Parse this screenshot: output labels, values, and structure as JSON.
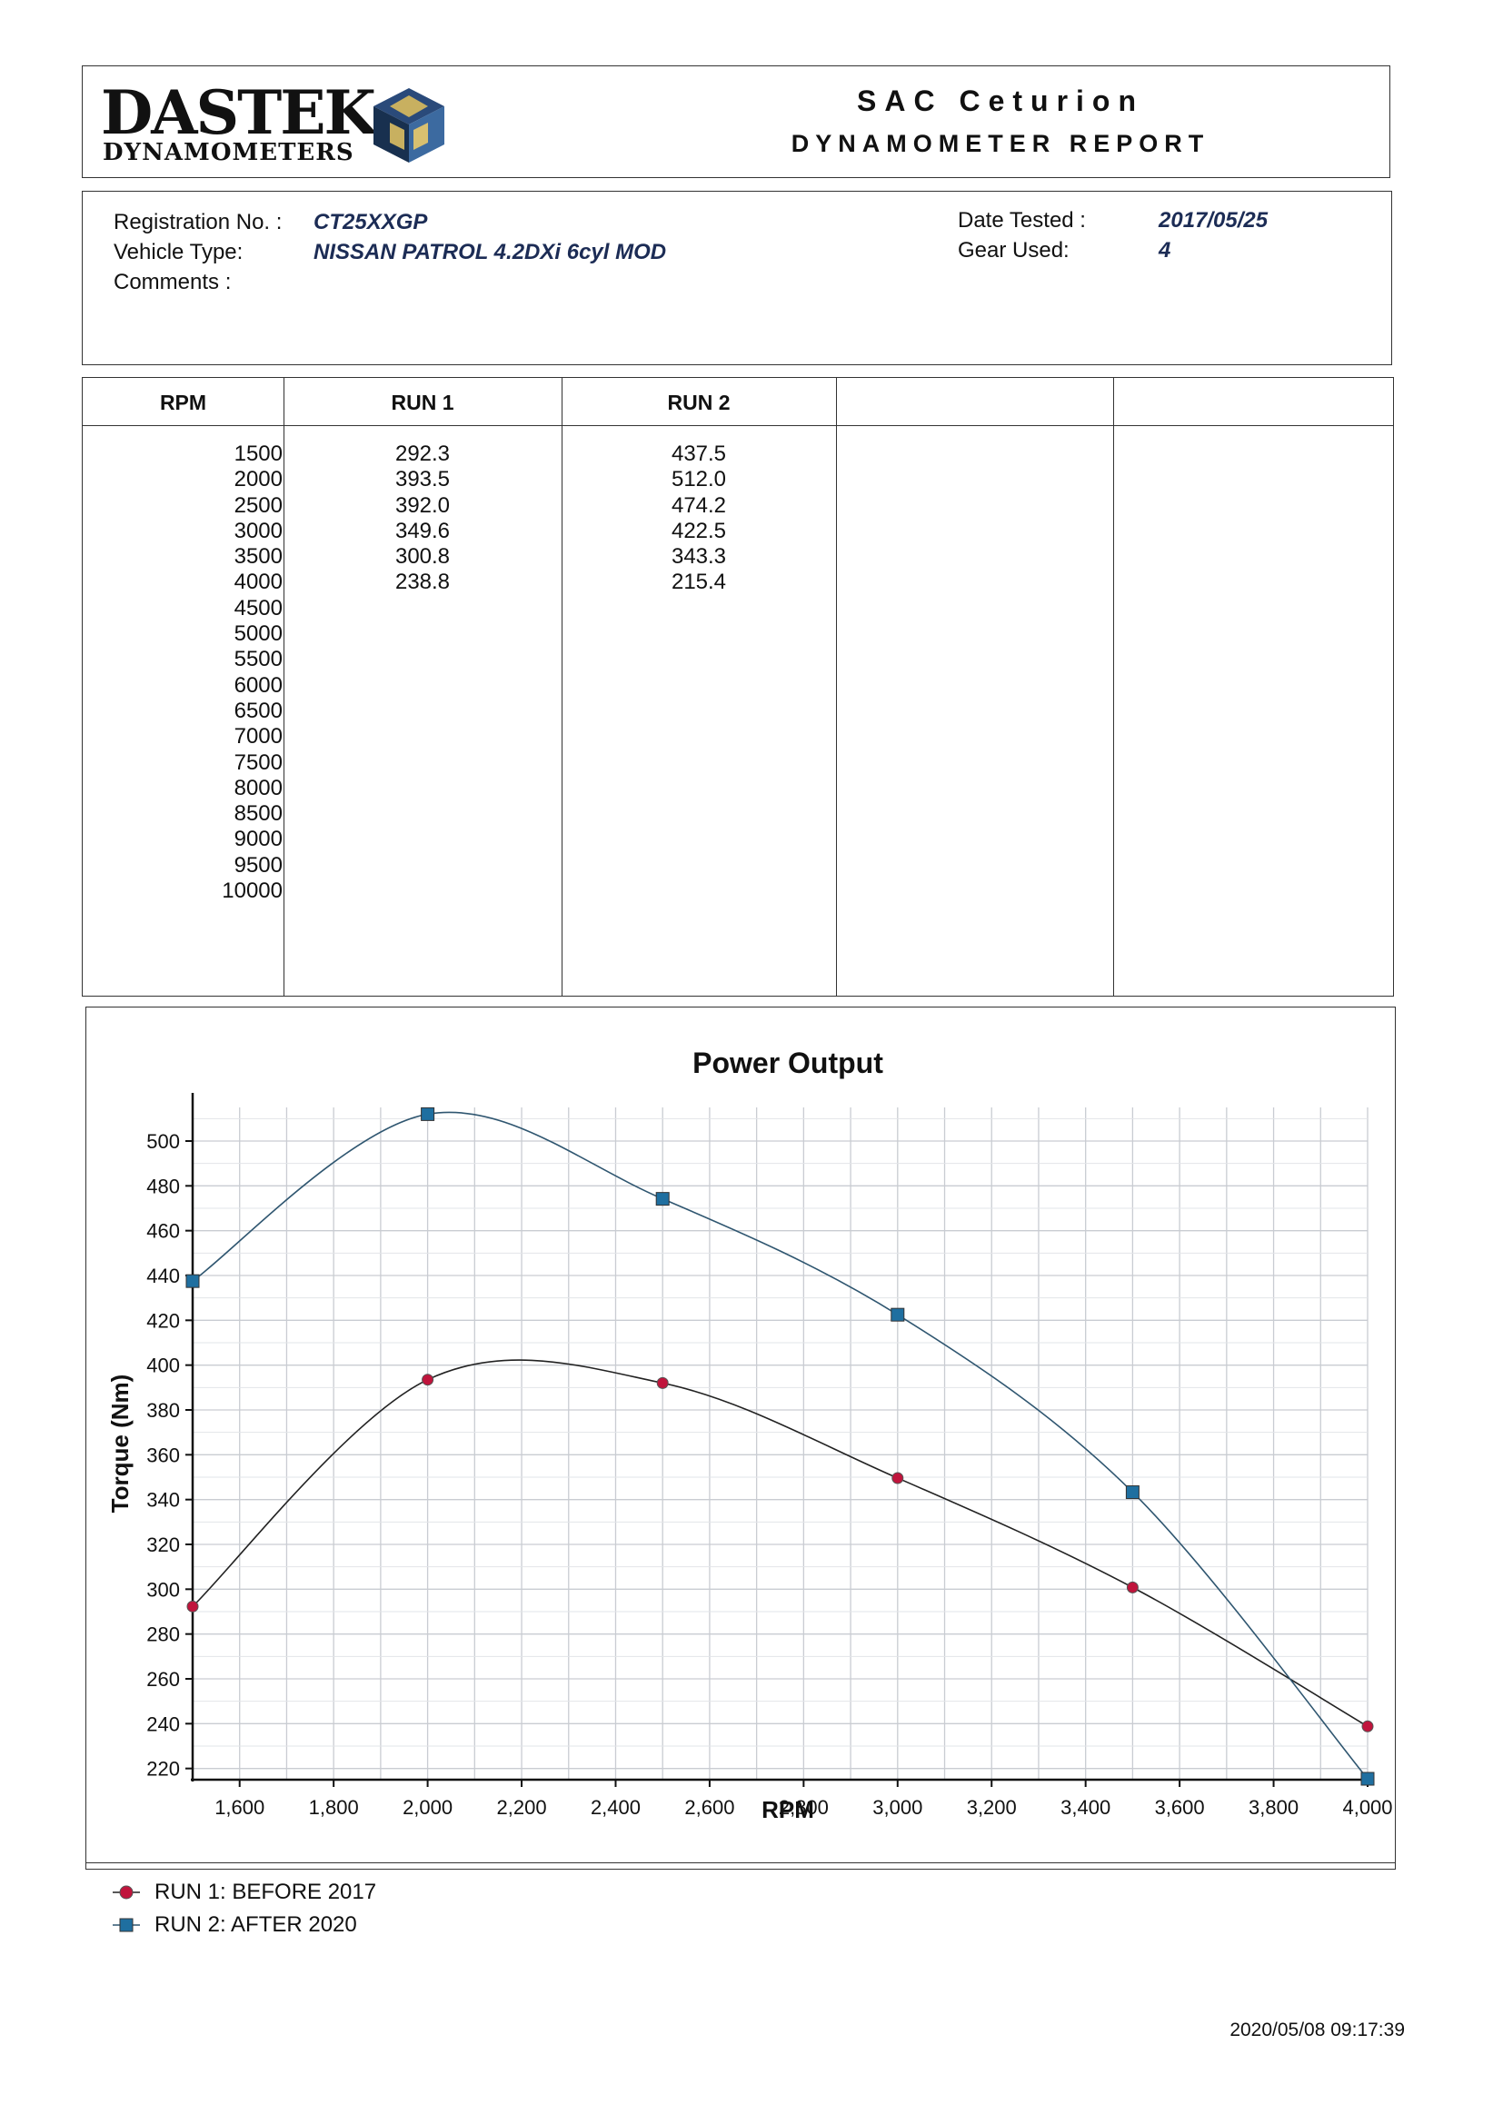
{
  "header": {
    "logo_main": "DASTEK",
    "logo_sub": "DYNAMOMETERS",
    "title": "SAC Ceturion",
    "subtitle": "DYNAMOMETER REPORT"
  },
  "info": {
    "registration_label": "Registration No. :",
    "registration_value": "CT25XXGP",
    "vehicle_label": "Vehicle Type:",
    "vehicle_value": "NISSAN PATROL 4.2DXi 6cyl MOD",
    "comments_label": "Comments :",
    "date_label": "Date Tested :",
    "date_value": "2017/05/25",
    "gear_label": "Gear Used:",
    "gear_value": "4"
  },
  "table": {
    "headers": [
      "RPM",
      "RUN 1",
      "RUN 2",
      "",
      ""
    ],
    "rpm": [
      "1500",
      "2000",
      "2500",
      "3000",
      "3500",
      "4000",
      "4500",
      "5000",
      "5500",
      "6000",
      "6500",
      "7000",
      "7500",
      "8000",
      "8500",
      "9000",
      "9500",
      "10000"
    ],
    "run1": [
      "292.3",
      "393.5",
      "392.0",
      "349.6",
      "300.8",
      "238.8"
    ],
    "run2": [
      "437.5",
      "512.0",
      "474.2",
      "422.5",
      "343.3",
      "215.4"
    ]
  },
  "chart_data": {
    "type": "line",
    "title": "Power Output",
    "xlabel": "RPM",
    "ylabel": "Torque (Nm)",
    "xlim": [
      1500,
      4000
    ],
    "ylim": [
      215,
      515
    ],
    "x_ticks": [
      "1,600",
      "1,800",
      "2,000",
      "2,200",
      "2,400",
      "2,600",
      "2,800",
      "3,000",
      "3,200",
      "3,400",
      "3,600",
      "3,800",
      "4,000"
    ],
    "x_tick_values": [
      1600,
      1800,
      2000,
      2200,
      2400,
      2600,
      2800,
      3000,
      3200,
      3400,
      3600,
      3800,
      4000
    ],
    "y_ticks": [
      220,
      240,
      260,
      280,
      300,
      320,
      340,
      360,
      380,
      400,
      420,
      440,
      460,
      480,
      500
    ],
    "grid": true,
    "legend_position": "bottom-left",
    "x": [
      1500,
      2000,
      2500,
      3000,
      3500,
      4000
    ],
    "series": [
      {
        "name": "RUN 1: BEFORE 2017",
        "values": [
          292.3,
          393.5,
          392.0,
          349.6,
          300.8,
          238.8
        ],
        "color": "#c0143c",
        "marker": "circle"
      },
      {
        "name": "RUN 2: AFTER 2020",
        "values": [
          437.5,
          512.0,
          474.2,
          422.5,
          343.3,
          215.4
        ],
        "color": "#1f6fa0",
        "marker": "square"
      }
    ]
  },
  "footer": {
    "timestamp": "2020/05/08 09:17:39"
  }
}
